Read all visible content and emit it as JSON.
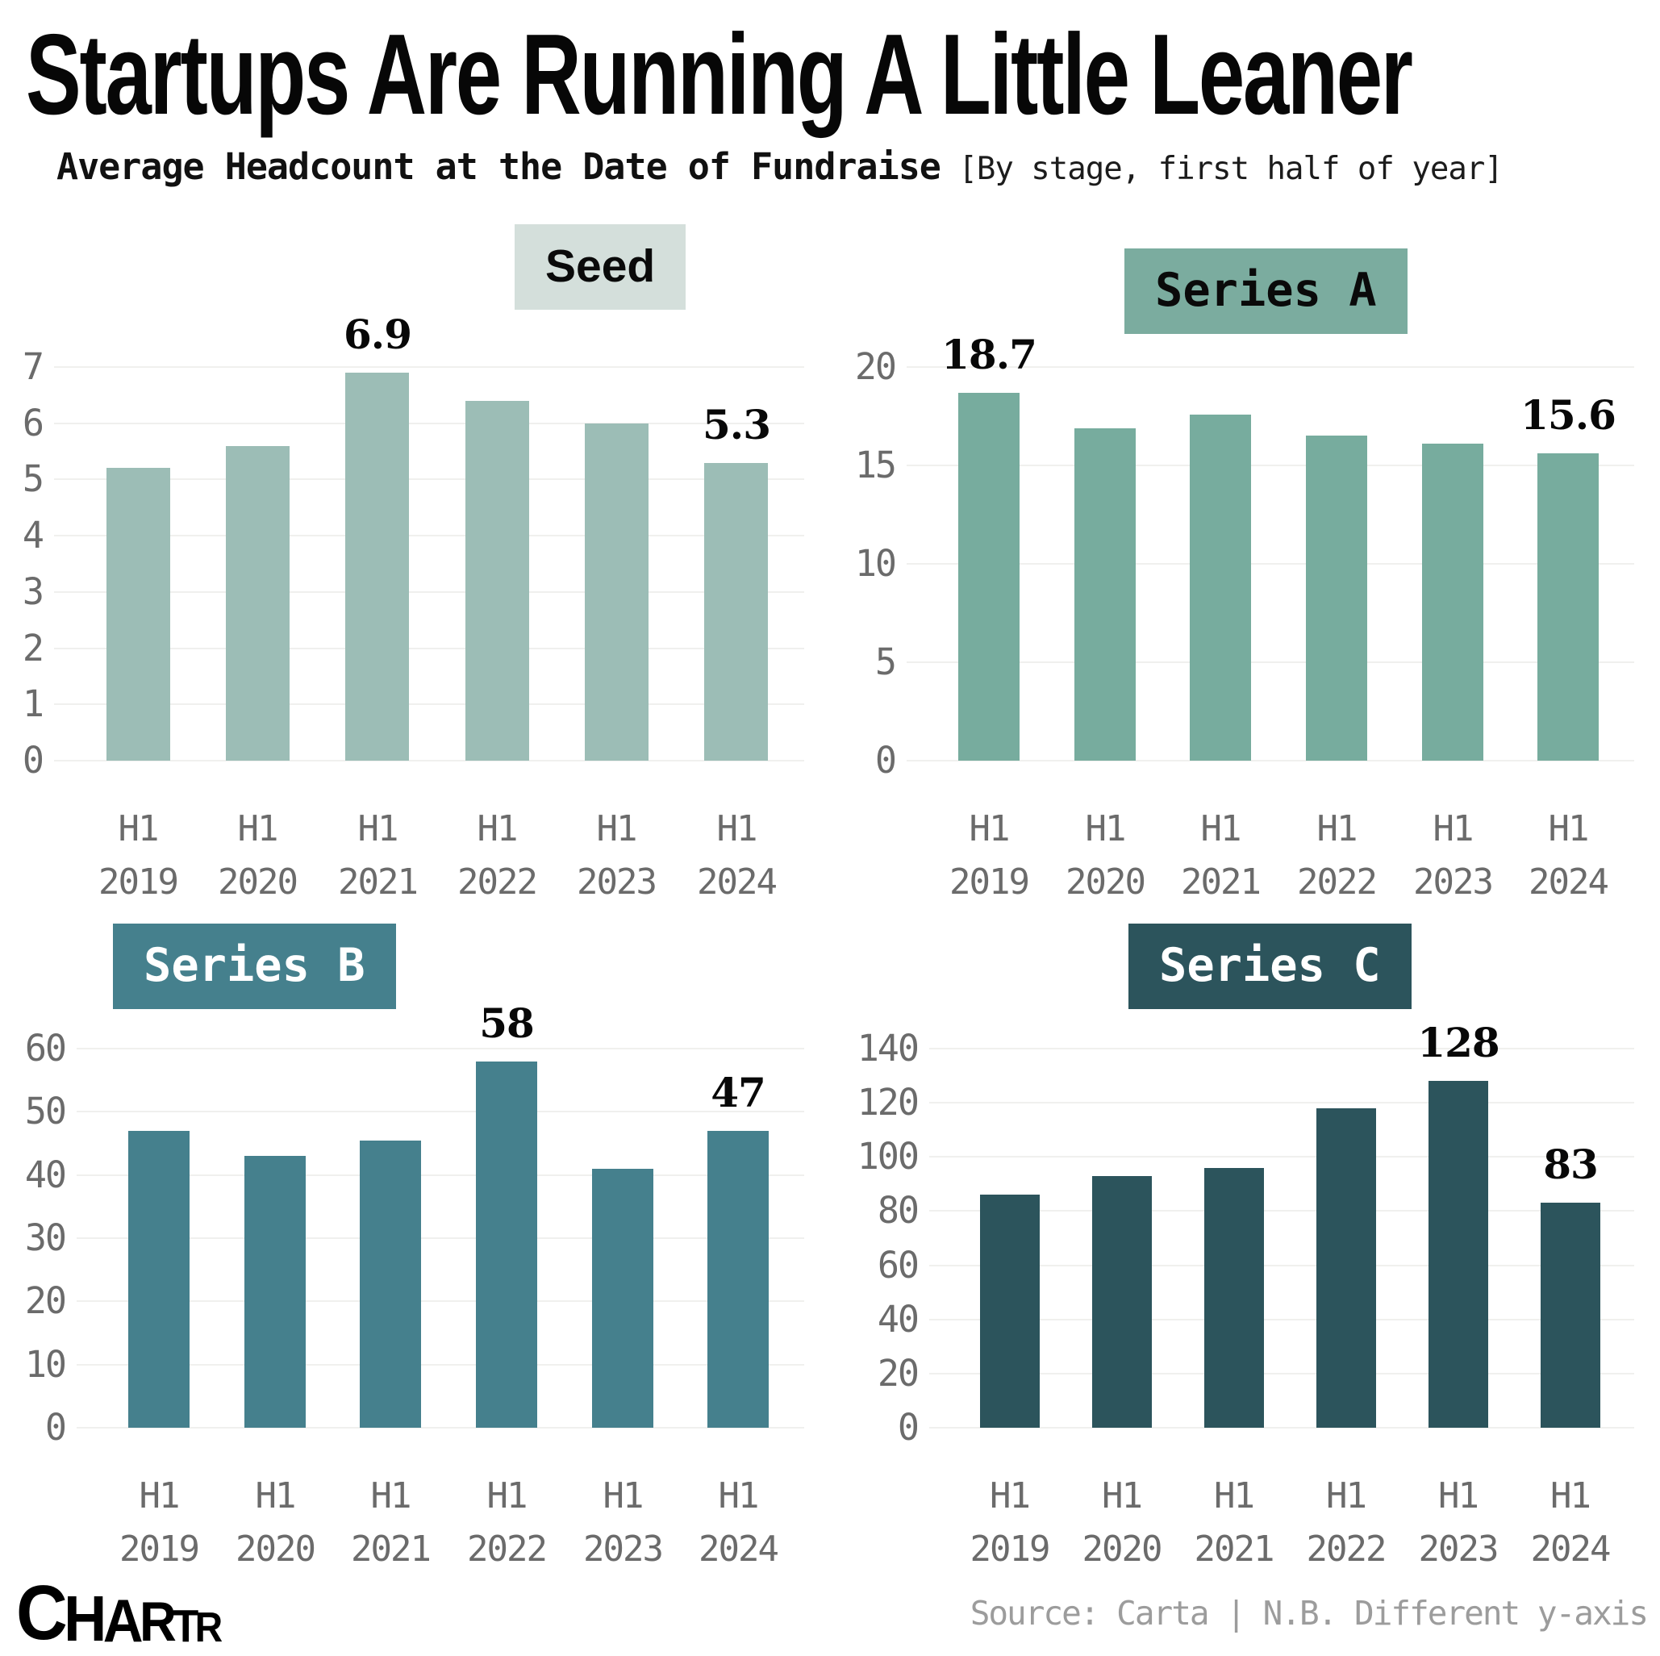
{
  "header": {
    "title": "Startups Are Running A Little Leaner",
    "subtitle": "Average Headcount at the Date of Fundraise",
    "subtitle_note": "[By stage, first half of year]"
  },
  "chart_data": [
    {
      "type": "bar",
      "title": "Seed",
      "categories": [
        "H1 2019",
        "H1 2020",
        "H1 2021",
        "H1 2022",
        "H1 2023",
        "H1 2024"
      ],
      "values": [
        5.2,
        5.6,
        6.9,
        6.4,
        6.0,
        5.3
      ],
      "value_labels": {
        "2": "6.9",
        "5": "5.3"
      },
      "ylim": [
        0,
        7
      ],
      "yticks": [
        0,
        1,
        2,
        3,
        4,
        5,
        6,
        7
      ],
      "grid": true,
      "legend": "none",
      "bar_color": "#9cbdb6",
      "badge_bg": "#d4dfdb",
      "badge_color": "#0a0a0a",
      "badge_font": "sans"
    },
    {
      "type": "bar",
      "title": "Series A",
      "categories": [
        "H1 2019",
        "H1 2020",
        "H1 2021",
        "H1 2022",
        "H1 2023",
        "H1 2024"
      ],
      "values": [
        18.7,
        16.9,
        17.6,
        16.5,
        16.1,
        15.6
      ],
      "value_labels": {
        "0": "18.7",
        "5": "15.6"
      },
      "ylim": [
        0,
        20
      ],
      "yticks": [
        0,
        5,
        10,
        15,
        20
      ],
      "grid": true,
      "legend": "none",
      "bar_color": "#77ac9e",
      "badge_bg": "#7bac9f",
      "badge_color": "#0a0a0a",
      "badge_font": "mono"
    },
    {
      "type": "bar",
      "title": "Series B",
      "categories": [
        "H1 2019",
        "H1 2020",
        "H1 2021",
        "H1 2022",
        "H1 2023",
        "H1 2024"
      ],
      "values": [
        47,
        43,
        45.5,
        58,
        41,
        47
      ],
      "value_labels": {
        "3": "58",
        "5": "47"
      },
      "ylim": [
        0,
        60
      ],
      "yticks": [
        0,
        10,
        20,
        30,
        40,
        50,
        60
      ],
      "grid": true,
      "legend": "none",
      "bar_color": "#45808d",
      "badge_bg": "#45808d",
      "badge_color": "#ffffff",
      "badge_font": "mono"
    },
    {
      "type": "bar",
      "title": "Series C",
      "categories": [
        "H1 2019",
        "H1 2020",
        "H1 2021",
        "H1 2022",
        "H1 2023",
        "H1 2024"
      ],
      "values": [
        86,
        93,
        96,
        118,
        128,
        83
      ],
      "value_labels": {
        "4": "128",
        "5": "83"
      },
      "ylim": [
        0,
        140
      ],
      "yticks": [
        0,
        20,
        40,
        60,
        80,
        100,
        120,
        140
      ],
      "grid": true,
      "legend": "none",
      "bar_color": "#2c545c",
      "badge_bg": "#2c545c",
      "badge_color": "#ffffff",
      "badge_font": "mono"
    }
  ],
  "footer": {
    "logo": "CHARTR",
    "source": "Source: Carta | N.B. Different y-axis"
  },
  "colors": {
    "background": "#ffffff",
    "gridline": "#f0f0ee",
    "axis_text": "#6b6b6b",
    "title_text": "#070707",
    "source_text": "#9c9c9c"
  }
}
